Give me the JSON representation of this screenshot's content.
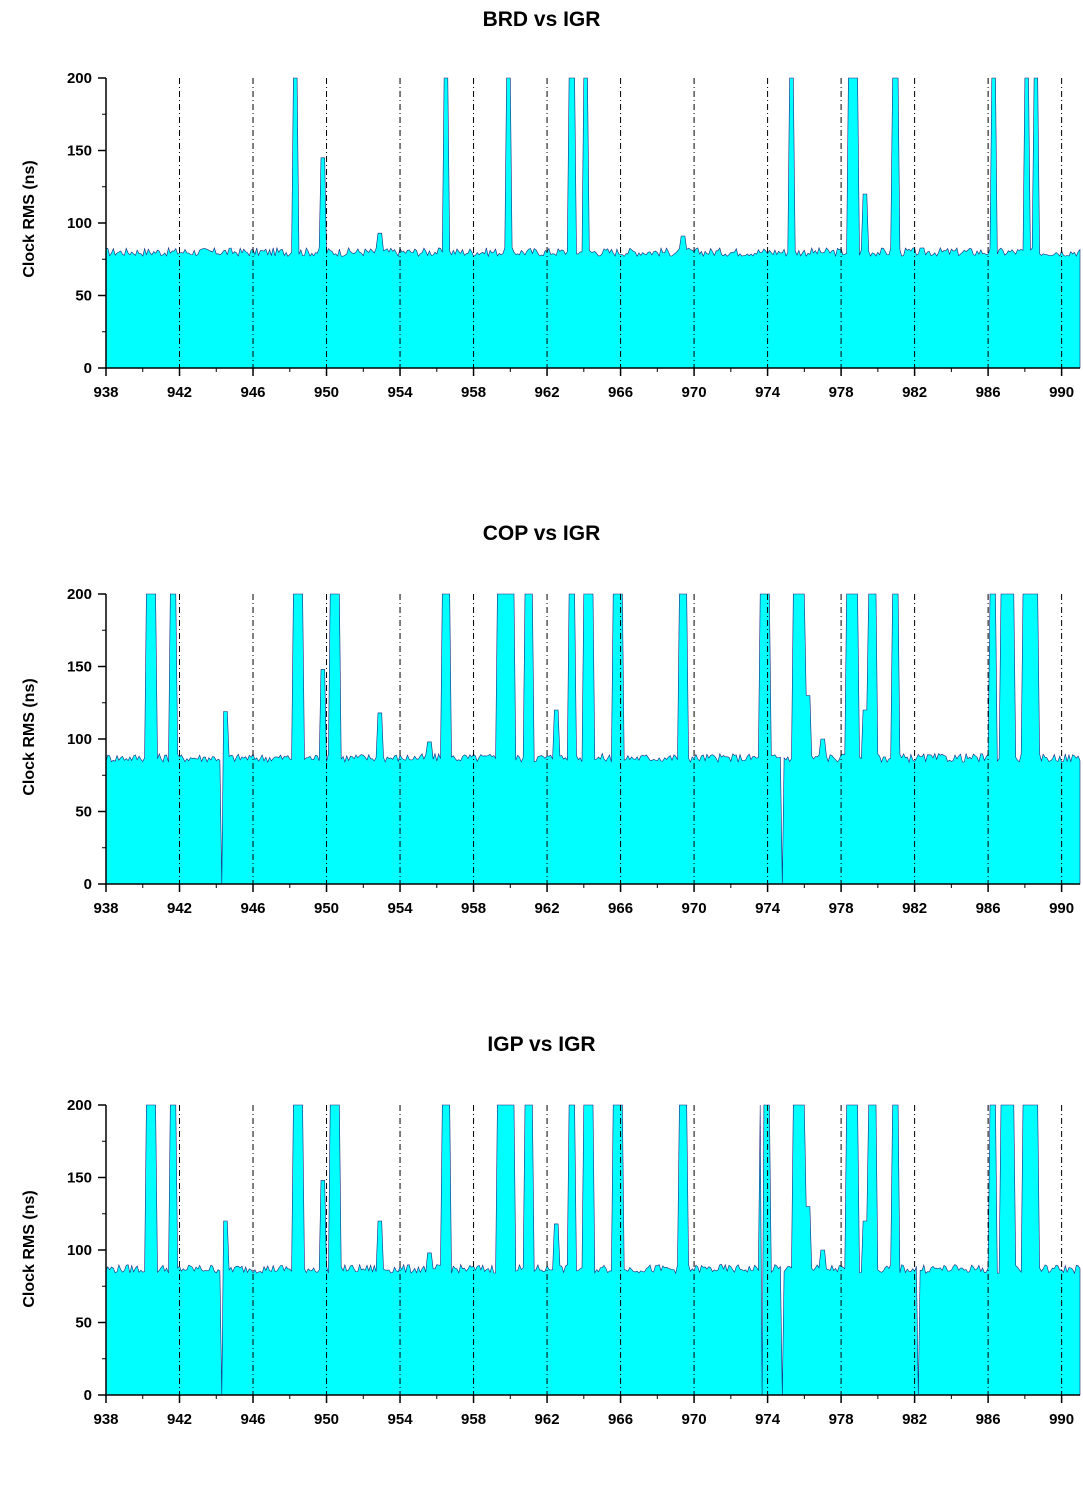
{
  "chart_data": [
    {
      "type": "area",
      "title": "BRD vs IGR",
      "ylabel": "Clock RMS (ns)",
      "xlabel": "",
      "xlim": [
        938,
        991
      ],
      "ylim": [
        0,
        200
      ],
      "xticks": [
        938,
        942,
        946,
        950,
        954,
        958,
        962,
        966,
        970,
        974,
        978,
        982,
        986,
        990
      ],
      "yticks": [
        0,
        50,
        100,
        150,
        200
      ],
      "grid": "vertical dashed at every 4 units",
      "fill_color": "#00FFFF",
      "baseline": 80,
      "spikes_to_top": [
        [
          948.2,
          948.5
        ],
        [
          956.4,
          956.7
        ],
        [
          959.8,
          960.1
        ],
        [
          963.2,
          963.6
        ],
        [
          964.0,
          964.3
        ],
        [
          975.2,
          975.5
        ],
        [
          978.4,
          979.0
        ],
        [
          980.8,
          981.2
        ],
        [
          986.2,
          986.5
        ],
        [
          988.0,
          988.3
        ],
        [
          988.5,
          988.8
        ]
      ],
      "peaks": [
        [
          949.8,
          145
        ],
        [
          952.9,
          93
        ],
        [
          969.4,
          91
        ],
        [
          979.3,
          120
        ]
      ],
      "zero_dips": []
    },
    {
      "type": "area",
      "title": "COP vs IGR",
      "ylabel": "Clock RMS (ns)",
      "xlabel": "",
      "xlim": [
        938,
        991
      ],
      "ylim": [
        0,
        200
      ],
      "xticks": [
        938,
        942,
        946,
        950,
        954,
        958,
        962,
        966,
        970,
        974,
        978,
        982,
        986,
        990
      ],
      "yticks": [
        0,
        50,
        100,
        150,
        200
      ],
      "grid": "vertical dashed at every 4 units",
      "fill_color": "#00FFFF",
      "baseline": 87,
      "spikes_to_top": [
        [
          940.2,
          940.8
        ],
        [
          941.5,
          941.9
        ],
        [
          948.2,
          948.8
        ],
        [
          950.2,
          950.8
        ],
        [
          956.3,
          956.8
        ],
        [
          959.3,
          960.3
        ],
        [
          960.8,
          961.3
        ],
        [
          963.2,
          963.6
        ],
        [
          964.0,
          964.6
        ],
        [
          965.6,
          966.2
        ],
        [
          969.2,
          969.7
        ],
        [
          973.6,
          974.2
        ],
        [
          975.4,
          976.2
        ],
        [
          978.3,
          979.0
        ],
        [
          979.5,
          980.0
        ],
        [
          980.8,
          981.2
        ],
        [
          986.1,
          986.5
        ],
        [
          986.7,
          987.5
        ],
        [
          987.9,
          988.8
        ]
      ],
      "peaks": [
        [
          944.5,
          119
        ],
        [
          949.8,
          148
        ],
        [
          952.9,
          118
        ],
        [
          955.6,
          98
        ],
        [
          962.5,
          120
        ],
        [
          976.2,
          130
        ],
        [
          977.0,
          100
        ],
        [
          979.3,
          120
        ]
      ],
      "zero_dips": [
        [
          944.3,
          0
        ],
        [
          974.8,
          0
        ]
      ]
    },
    {
      "type": "area",
      "title": "IGP vs IGR",
      "ylabel": "Clock RMS (ns)",
      "xlabel": "",
      "xlim": [
        938,
        991
      ],
      "ylim": [
        0,
        200
      ],
      "xticks": [
        938,
        942,
        946,
        950,
        954,
        958,
        962,
        966,
        970,
        974,
        978,
        982,
        986,
        990
      ],
      "yticks": [
        0,
        50,
        100,
        150,
        200
      ],
      "grid": "vertical dashed at every 4 units",
      "fill_color": "#00FFFF",
      "baseline": 87,
      "spikes_to_top": [
        [
          940.2,
          940.8
        ],
        [
          941.5,
          941.9
        ],
        [
          948.2,
          948.8
        ],
        [
          950.2,
          950.8
        ],
        [
          956.3,
          956.8
        ],
        [
          959.3,
          960.3
        ],
        [
          960.8,
          961.3
        ],
        [
          963.2,
          963.6
        ],
        [
          964.0,
          964.6
        ],
        [
          965.6,
          966.2
        ],
        [
          969.2,
          969.7
        ],
        [
          973.6,
          974.2
        ],
        [
          975.4,
          976.2
        ],
        [
          978.3,
          979.0
        ],
        [
          979.5,
          980.0
        ],
        [
          980.8,
          981.2
        ],
        [
          986.1,
          986.5
        ],
        [
          986.7,
          987.5
        ],
        [
          987.9,
          988.8
        ]
      ],
      "peaks": [
        [
          944.5,
          120
        ],
        [
          949.8,
          148
        ],
        [
          952.9,
          120
        ],
        [
          955.6,
          98
        ],
        [
          962.5,
          118
        ],
        [
          976.2,
          130
        ],
        [
          977.0,
          100
        ],
        [
          979.3,
          120
        ]
      ],
      "zero_dips": [
        [
          944.3,
          0
        ],
        [
          973.7,
          0
        ],
        [
          974.8,
          0
        ],
        [
          982.2,
          0
        ]
      ]
    }
  ]
}
